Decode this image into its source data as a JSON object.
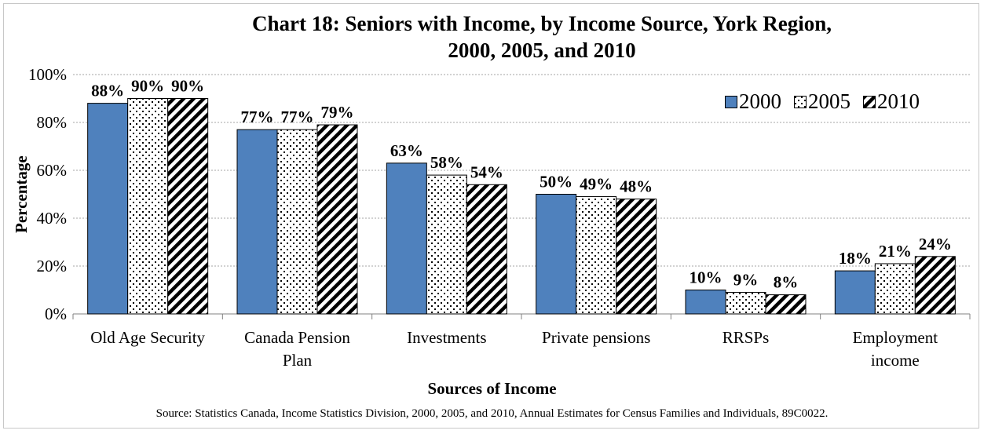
{
  "chart_data": {
    "type": "bar",
    "title_line1": "Chart 18: Seniors with Income, by Income Source, York Region,",
    "title_line2": "2000, 2005, and 2010",
    "xlabel": "Sources of Income",
    "ylabel": "Percentage",
    "ylim": [
      0,
      100
    ],
    "yticks": [
      "0%",
      "20%",
      "40%",
      "60%",
      "80%",
      "100%"
    ],
    "grid": true,
    "legend_position": "top-right",
    "categories": [
      [
        "Old Age Security"
      ],
      [
        "Canada Pension",
        "Plan"
      ],
      [
        "Investments"
      ],
      [
        "Private pensions"
      ],
      [
        "RRSPs"
      ],
      [
        "Employment",
        "income"
      ]
    ],
    "series": [
      {
        "name": "2000",
        "pattern": "solid",
        "color": "#4f81bd",
        "values": [
          88,
          77,
          63,
          50,
          10,
          18
        ],
        "labels": [
          "88%",
          "77%",
          "63%",
          "50%",
          "10%",
          "18%"
        ]
      },
      {
        "name": "2005",
        "pattern": "dots",
        "color": "#000000",
        "values": [
          90,
          77,
          58,
          49,
          9,
          21
        ],
        "labels": [
          "90%",
          "77%",
          "58%",
          "49%",
          "9%",
          "21%"
        ]
      },
      {
        "name": "2010",
        "pattern": "diagonal-stripes",
        "color": "#000000",
        "values": [
          90,
          79,
          54,
          48,
          8,
          24
        ],
        "labels": [
          "90%",
          "79%",
          "54%",
          "48%",
          "8%",
          "24%"
        ]
      }
    ],
    "source": "Source: Statistics Canada, Income Statistics Division, 2000, 2005, and 2010, Annual Estimates for Census Families and Individuals, 89C0022."
  }
}
